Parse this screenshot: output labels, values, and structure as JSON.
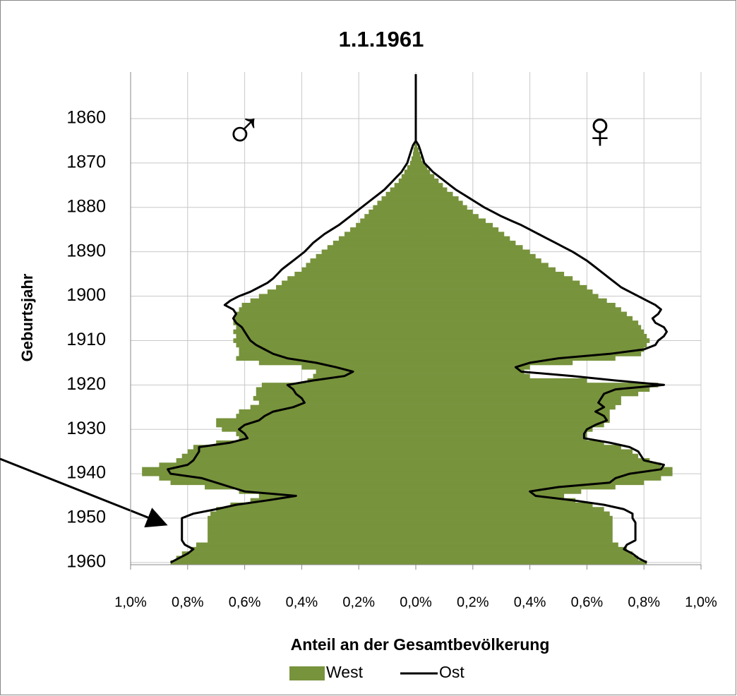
{
  "chart_data": {
    "type": "bar",
    "title": "1.1.1961",
    "ylabel": "Geburtsjahr",
    "xlabel": "Anteil an der Gesamtbevölkerung",
    "annotations": [
      "♂",
      "♀"
    ],
    "grid": true,
    "legend": "bottom",
    "ylim": [
      1849.5,
      1960.5
    ],
    "yticks": [
      1860,
      1870,
      1880,
      1890,
      1900,
      1910,
      1920,
      1930,
      1940,
      1950,
      1960
    ],
    "xlim": [
      -1.0,
      1.0
    ],
    "xticks": [
      {
        "value": -1.0,
        "label": "1,0%"
      },
      {
        "value": -0.8,
        "label": "0,8%"
      },
      {
        "value": -0.6,
        "label": "0,6%"
      },
      {
        "value": -0.4,
        "label": "0,4%"
      },
      {
        "value": -0.2,
        "label": "0,2%"
      },
      {
        "value": 0,
        "label": "0,0%"
      },
      {
        "value": 0.2,
        "label": "0,2%"
      },
      {
        "value": 0.4,
        "label": "0,4%"
      },
      {
        "value": 0.6,
        "label": "0,6%"
      },
      {
        "value": 0.8,
        "label": "0,8%"
      },
      {
        "value": 1.0,
        "label": "1,0%"
      }
    ],
    "x": [
      1850,
      1851,
      1852,
      1853,
      1854,
      1855,
      1856,
      1857,
      1858,
      1859,
      1860,
      1861,
      1862,
      1863,
      1864,
      1865,
      1866,
      1867,
      1868,
      1869,
      1870,
      1871,
      1872,
      1873,
      1874,
      1875,
      1876,
      1877,
      1878,
      1879,
      1880,
      1881,
      1882,
      1883,
      1884,
      1885,
      1886,
      1887,
      1888,
      1889,
      1890,
      1891,
      1892,
      1893,
      1894,
      1895,
      1896,
      1897,
      1898,
      1899,
      1900,
      1901,
      1902,
      1903,
      1904,
      1905,
      1906,
      1907,
      1908,
      1909,
      1910,
      1911,
      1912,
      1913,
      1914,
      1915,
      1916,
      1917,
      1918,
      1919,
      1920,
      1921,
      1922,
      1923,
      1924,
      1925,
      1926,
      1927,
      1928,
      1929,
      1930,
      1931,
      1932,
      1933,
      1934,
      1935,
      1936,
      1937,
      1938,
      1939,
      1940,
      1941,
      1942,
      1943,
      1944,
      1945,
      1946,
      1947,
      1948,
      1949,
      1950,
      1951,
      1952,
      1953,
      1954,
      1955,
      1956,
      1957,
      1958,
      1959,
      1960
    ],
    "series": [
      {
        "name": "West",
        "kind": "bar",
        "color": "#77933c",
        "male": [
          0,
          0,
          0,
          0,
          0,
          0,
          0,
          0,
          0,
          0,
          0,
          0,
          0,
          0,
          0,
          0,
          -0.005,
          -0.008,
          -0.01,
          -0.015,
          -0.02,
          -0.03,
          -0.04,
          -0.05,
          -0.06,
          -0.075,
          -0.09,
          -0.105,
          -0.12,
          -0.135,
          -0.15,
          -0.165,
          -0.18,
          -0.195,
          -0.21,
          -0.23,
          -0.25,
          -0.27,
          -0.29,
          -0.31,
          -0.33,
          -0.35,
          -0.37,
          -0.385,
          -0.4,
          -0.425,
          -0.45,
          -0.47,
          -0.49,
          -0.52,
          -0.55,
          -0.58,
          -0.61,
          -0.62,
          -0.63,
          -0.64,
          -0.64,
          -0.63,
          -0.64,
          -0.63,
          -0.64,
          -0.63,
          -0.62,
          -0.62,
          -0.63,
          -0.55,
          -0.4,
          -0.35,
          -0.36,
          -0.38,
          -0.54,
          -0.56,
          -0.56,
          -0.57,
          -0.55,
          -0.58,
          -0.62,
          -0.63,
          -0.7,
          -0.7,
          -0.68,
          -0.63,
          -0.62,
          -0.7,
          -0.78,
          -0.8,
          -0.82,
          -0.84,
          -0.9,
          -0.96,
          -0.96,
          -0.9,
          -0.86,
          -0.74,
          -0.62,
          -0.55,
          -0.58,
          -0.65,
          -0.7,
          -0.72,
          -0.73,
          -0.73,
          -0.73,
          -0.73,
          -0.73,
          -0.73,
          -0.77,
          -0.79,
          -0.82,
          -0.84,
          -0.86
        ],
        "female": [
          0,
          0,
          0,
          0,
          0,
          0,
          0,
          0,
          0,
          0,
          0,
          0,
          0,
          0,
          0,
          0,
          0.005,
          0.01,
          0.015,
          0.02,
          0.03,
          0.04,
          0.05,
          0.065,
          0.08,
          0.095,
          0.11,
          0.13,
          0.15,
          0.165,
          0.18,
          0.2,
          0.22,
          0.245,
          0.27,
          0.29,
          0.31,
          0.33,
          0.35,
          0.375,
          0.4,
          0.42,
          0.44,
          0.465,
          0.49,
          0.52,
          0.55,
          0.575,
          0.6,
          0.62,
          0.64,
          0.67,
          0.7,
          0.72,
          0.74,
          0.76,
          0.78,
          0.79,
          0.8,
          0.81,
          0.82,
          0.81,
          0.8,
          0.79,
          0.7,
          0.55,
          0.4,
          0.38,
          0.4,
          0.6,
          0.85,
          0.82,
          0.78,
          0.72,
          0.72,
          0.7,
          0.68,
          0.68,
          0.68,
          0.66,
          0.62,
          0.6,
          0.6,
          0.66,
          0.72,
          0.76,
          0.78,
          0.82,
          0.86,
          0.9,
          0.9,
          0.86,
          0.8,
          0.7,
          0.58,
          0.52,
          0.56,
          0.62,
          0.66,
          0.68,
          0.69,
          0.69,
          0.69,
          0.69,
          0.69,
          0.69,
          0.71,
          0.74,
          0.76,
          0.78,
          0.81
        ]
      },
      {
        "name": "Ost",
        "kind": "line",
        "color": "#000000",
        "male": [
          0,
          0,
          0,
          0,
          0,
          0,
          0,
          0,
          0,
          0,
          0,
          0,
          0,
          0,
          0,
          0,
          -0.01,
          -0.015,
          -0.02,
          -0.025,
          -0.03,
          -0.04,
          -0.05,
          -0.065,
          -0.08,
          -0.095,
          -0.11,
          -0.13,
          -0.15,
          -0.17,
          -0.19,
          -0.21,
          -0.23,
          -0.25,
          -0.27,
          -0.295,
          -0.32,
          -0.34,
          -0.36,
          -0.375,
          -0.39,
          -0.41,
          -0.43,
          -0.45,
          -0.47,
          -0.485,
          -0.5,
          -0.52,
          -0.55,
          -0.58,
          -0.62,
          -0.65,
          -0.67,
          -0.64,
          -0.63,
          -0.64,
          -0.63,
          -0.61,
          -0.6,
          -0.59,
          -0.58,
          -0.56,
          -0.53,
          -0.5,
          -0.45,
          -0.35,
          -0.28,
          -0.22,
          -0.25,
          -0.36,
          -0.45,
          -0.43,
          -0.42,
          -0.4,
          -0.39,
          -0.43,
          -0.5,
          -0.53,
          -0.55,
          -0.6,
          -0.62,
          -0.6,
          -0.59,
          -0.65,
          -0.76,
          -0.76,
          -0.77,
          -0.78,
          -0.8,
          -0.87,
          -0.86,
          -0.75,
          -0.7,
          -0.65,
          -0.6,
          -0.42,
          -0.52,
          -0.63,
          -0.7,
          -0.78,
          -0.82,
          -0.82,
          -0.82,
          -0.82,
          -0.82,
          -0.82,
          -0.81,
          -0.78,
          -0.8,
          -0.83,
          -0.86
        ],
        "female": [
          0,
          0,
          0,
          0,
          0,
          0,
          0,
          0,
          0,
          0,
          0,
          0,
          0,
          0,
          0,
          0,
          0.01,
          0.015,
          0.02,
          0.025,
          0.03,
          0.045,
          0.06,
          0.08,
          0.1,
          0.12,
          0.14,
          0.165,
          0.19,
          0.215,
          0.24,
          0.27,
          0.3,
          0.335,
          0.37,
          0.4,
          0.43,
          0.46,
          0.49,
          0.52,
          0.55,
          0.575,
          0.6,
          0.62,
          0.64,
          0.66,
          0.68,
          0.7,
          0.72,
          0.75,
          0.78,
          0.81,
          0.84,
          0.86,
          0.85,
          0.83,
          0.84,
          0.87,
          0.88,
          0.87,
          0.85,
          0.84,
          0.8,
          0.68,
          0.5,
          0.4,
          0.35,
          0.37,
          0.55,
          0.7,
          0.87,
          0.7,
          0.66,
          0.65,
          0.64,
          0.66,
          0.63,
          0.66,
          0.67,
          0.63,
          0.6,
          0.59,
          0.59,
          0.68,
          0.75,
          0.78,
          0.79,
          0.8,
          0.87,
          0.86,
          0.75,
          0.7,
          0.68,
          0.5,
          0.4,
          0.42,
          0.55,
          0.66,
          0.73,
          0.76,
          0.76,
          0.77,
          0.77,
          0.77,
          0.77,
          0.77,
          0.74,
          0.73,
          0.76,
          0.78,
          0.81
        ]
      }
    ]
  }
}
